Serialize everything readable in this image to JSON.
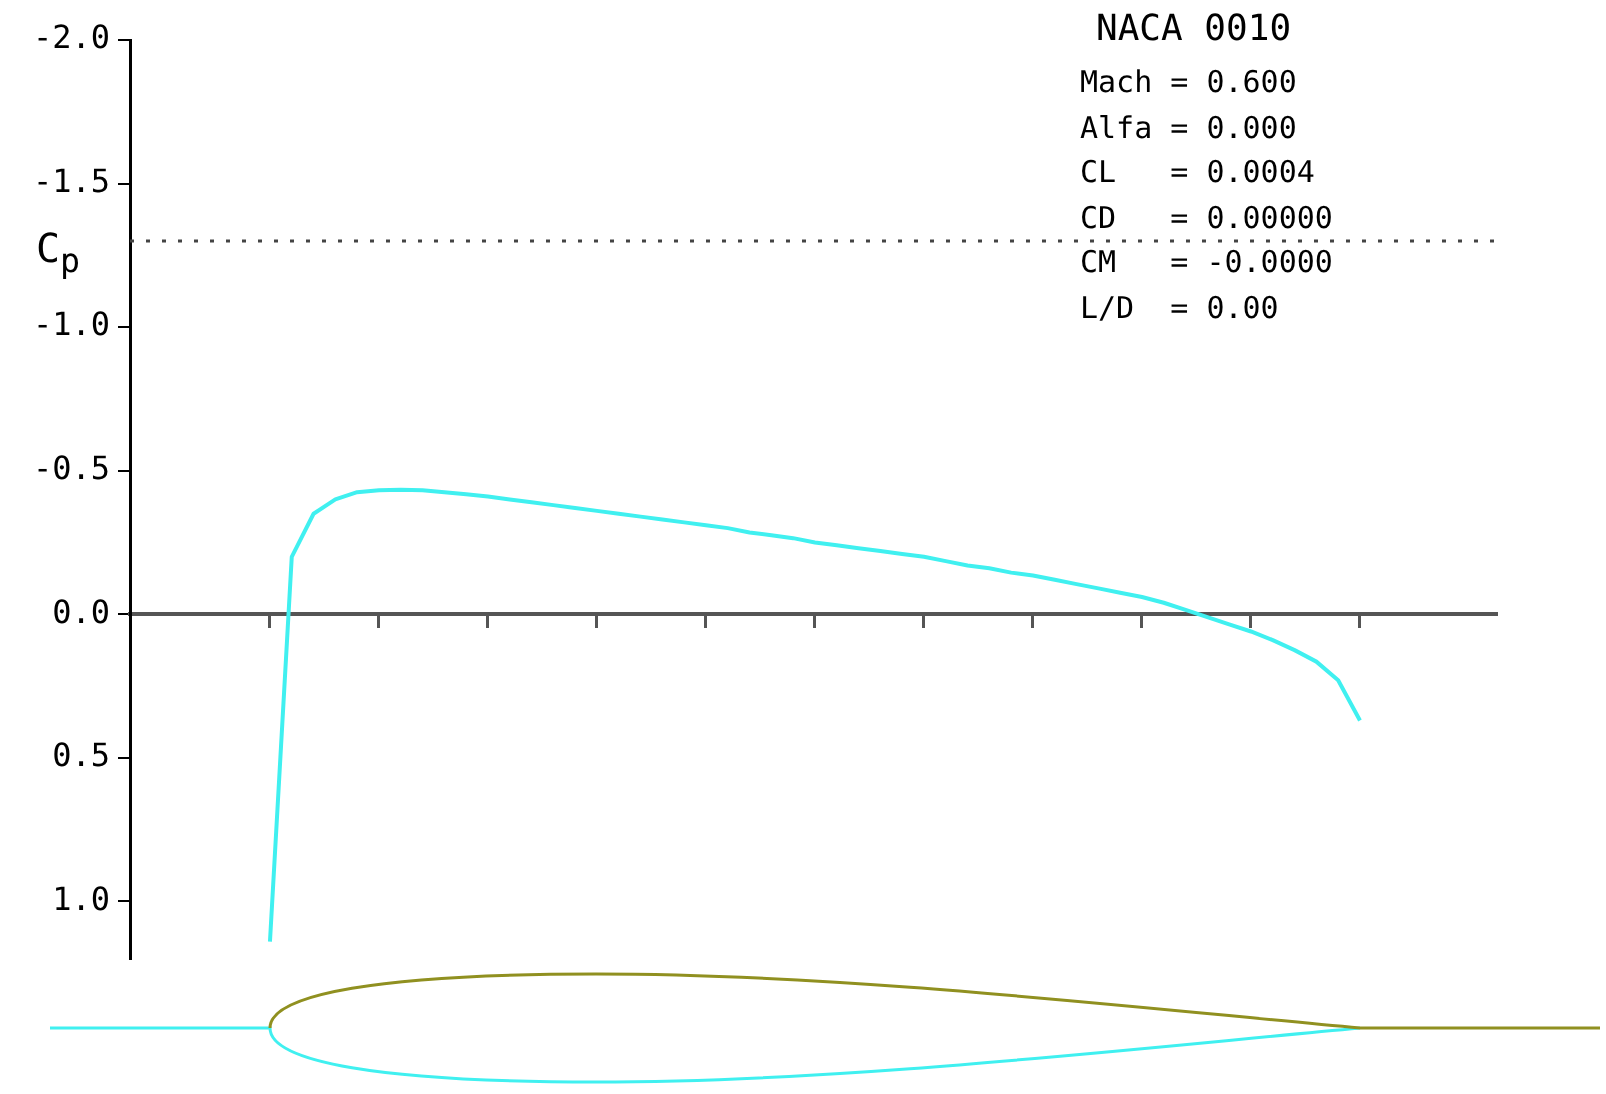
{
  "chart_data": {
    "type": "line",
    "title": "NACA 0010",
    "ylabel": "C$_{p}$",
    "annotations": [
      "Mach = 0.600",
      "Alfa = 0.000",
      "CL   = 0.0004",
      "CD   = 0.00000",
      "CM   = -0.0000",
      "L/D  = 0.00"
    ],
    "categories": [
      null,
      null,
      null,
      null,
      null,
      null,
      null,
      null,
      null,
      null,
      null,
      null,
      null,
      null,
      null,
      null,
      null,
      null,
      null,
      null,
      null,
      null,
      null,
      null,
      null,
      null,
      null,
      null,
      null,
      null,
      null,
      null,
      null,
      null,
      null,
      null,
      null,
      null,
      null,
      null,
      null,
      null,
      null,
      null,
      null,
      null,
      null,
      null,
      null,
      null,
      null
    ],
    "series": [
      {
        "color": "#40f0f0",
        "values": [
          1.14,
          -0.2,
          -0.35,
          -0.4,
          -0.425,
          -0.432,
          -0.434,
          -0.432,
          -0.425,
          -0.418,
          -0.41,
          -0.4,
          -0.39,
          -0.38,
          -0.37,
          -0.36,
          -0.35,
          -0.34,
          -0.33,
          -0.32,
          -0.31,
          -0.3,
          -0.285,
          -0.275,
          -0.265,
          -0.25,
          -0.24,
          -0.23,
          -0.22,
          -0.21,
          -0.2,
          -0.185,
          -0.17,
          -0.16,
          -0.145,
          -0.135,
          -0.12,
          -0.105,
          -0.09,
          -0.075,
          -0.06,
          -0.04,
          -0.015,
          0.01,
          0.035,
          0.06,
          0.09,
          0.125,
          0.165,
          0.23,
          0.37
        ]
      }
    ],
    "ylim": [
      1.2,
      -2.0
    ],
    "yticks": [
      {
        "value": -2.0,
        "label": "-2.0"
      },
      {
        "value": -1.5,
        "label": "-1.5"
      },
      {
        "value": -1.0,
        "label": "-1.0"
      },
      {
        "value": -0.5,
        "label": "-0.5"
      },
      {
        "value": 0,
        "label": "0.0"
      },
      {
        "value": 0.5,
        "label": "0.5"
      },
      {
        "value": 1.0,
        "label": "1.0"
      }
    ],
    "ref_lines": [
      {
        "axis": "y",
        "value": -1.3,
        "color": "#444444",
        "line_style": "dotted"
      }
    ],
    "tick_labels": "y",
    "legend": false,
    "marker": "none",
    "line_style": "solid"
  }
}
